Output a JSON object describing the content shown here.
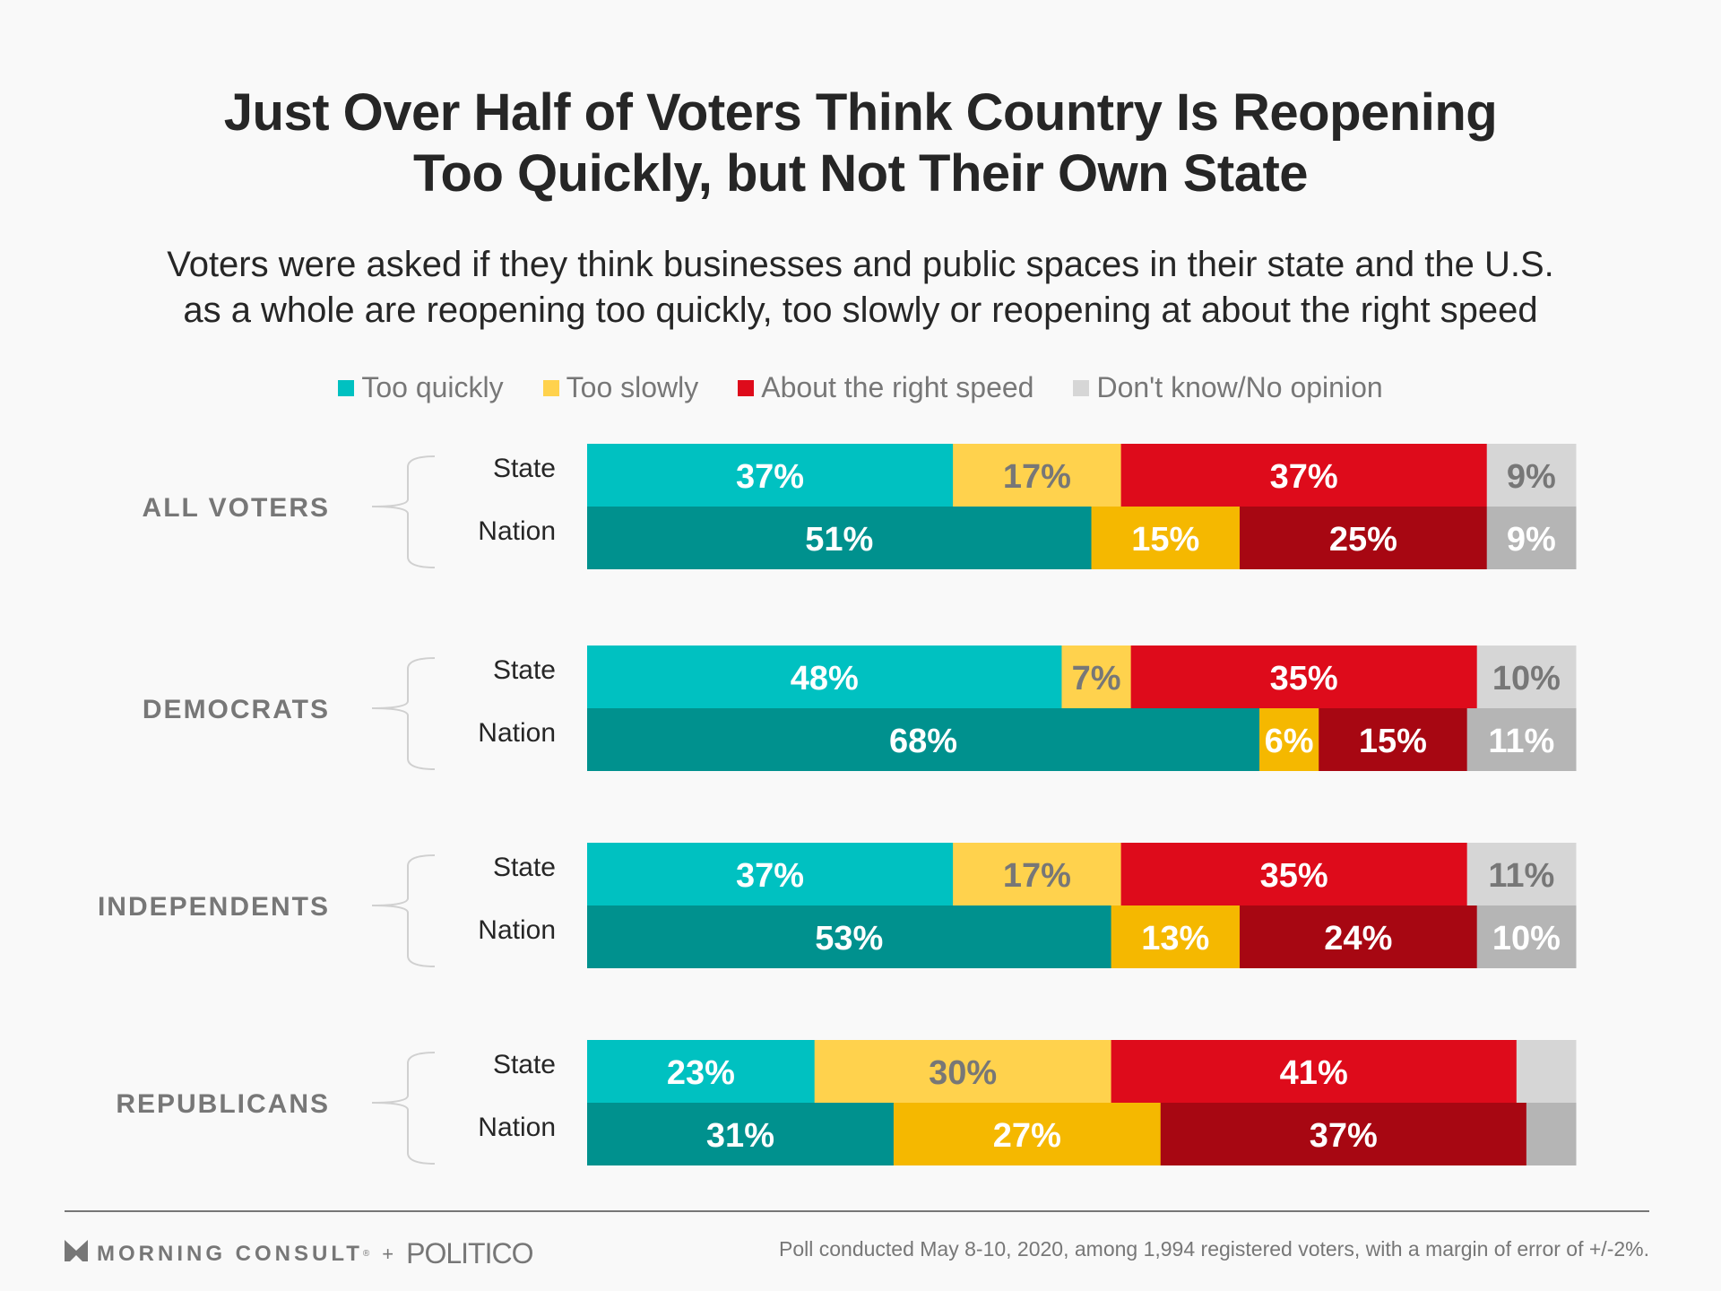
{
  "header": {
    "title_line1": "Just Over Half of Voters Think Country Is Reopening",
    "title_line2": "Too Quickly, but Not Their Own State",
    "subtitle_line1": "Voters were asked if they think businesses and public spaces in their state and the U.S.",
    "subtitle_line2": "as a whole are reopening too quickly, too slowly or reopening at about the right speed"
  },
  "footer": {
    "brand1": "MORNING CONSULT",
    "brand1_mark": "®",
    "plus": "+",
    "brand2": "POLITICO",
    "note": "Poll conducted May 8-10, 2020, among 1,994 registered voters, with a margin of error of +/-2%."
  },
  "chart_data": {
    "type": "bar",
    "orientation": "horizontal",
    "stacked": true,
    "title": "Just Over Half of Voters Think Country Is Reopening Too Quickly, but Not Their Own State",
    "subtitle": "Voters were asked if they think businesses and public spaces in their state and the U.S. as a whole are reopening too quickly, too slowly or reopening at about the right speed",
    "xlabel": "",
    "ylabel": "",
    "xlim": [
      0,
      100
    ],
    "unit": "%",
    "legend_position": "top",
    "legend": [
      {
        "name": "Too quickly",
        "color": "#00c1c1"
      },
      {
        "name": "Too slowly",
        "color": "#ffd24d"
      },
      {
        "name": "About the right speed",
        "color": "#de0b1b"
      },
      {
        "name": "Don't know/No opinion",
        "color": "#d6d6d6"
      }
    ],
    "row_colors": {
      "State": [
        "#00c1c1",
        "#ffd24d",
        "#de0b1b",
        "#d6d6d6"
      ],
      "Nation": [
        "#00918e",
        "#f5b800",
        "#a70712",
        "#b5b5b5"
      ]
    },
    "label_colors": {
      "State": [
        "#ffffff",
        "#777777",
        "#ffffff",
        "#777777"
      ],
      "Nation": [
        "#ffffff",
        "#ffffff",
        "#ffffff",
        "#ffffff"
      ]
    },
    "groups": [
      {
        "name": "ALL VOTERS",
        "rows": [
          {
            "name": "State",
            "values": [
              37,
              17,
              37,
              9
            ],
            "labels": [
              "37%",
              "17%",
              "37%",
              "9%"
            ]
          },
          {
            "name": "Nation",
            "values": [
              51,
              15,
              25,
              9
            ],
            "labels": [
              "51%",
              "15%",
              "25%",
              "9%"
            ]
          }
        ]
      },
      {
        "name": "DEMOCRATS",
        "rows": [
          {
            "name": "State",
            "values": [
              48,
              7,
              35,
              10
            ],
            "labels": [
              "48%",
              "7%",
              "35%",
              "10%"
            ]
          },
          {
            "name": "Nation",
            "values": [
              68,
              6,
              15,
              11
            ],
            "labels": [
              "68%",
              "6%",
              "15%",
              "11%"
            ]
          }
        ]
      },
      {
        "name": "INDEPENDENTS",
        "rows": [
          {
            "name": "State",
            "values": [
              37,
              17,
              35,
              11
            ],
            "labels": [
              "37%",
              "17%",
              "35%",
              "11%"
            ]
          },
          {
            "name": "Nation",
            "values": [
              53,
              13,
              24,
              10
            ],
            "labels": [
              "53%",
              "13%",
              "24%",
              "10%"
            ]
          }
        ]
      },
      {
        "name": "REPUBLICANS",
        "rows": [
          {
            "name": "State",
            "values": [
              23,
              30,
              41,
              6
            ],
            "labels": [
              "23%",
              "30%",
              "41%",
              ""
            ]
          },
          {
            "name": "Nation",
            "values": [
              31,
              27,
              37,
              5
            ],
            "labels": [
              "31%",
              "27%",
              "37%",
              ""
            ]
          }
        ]
      }
    ]
  }
}
